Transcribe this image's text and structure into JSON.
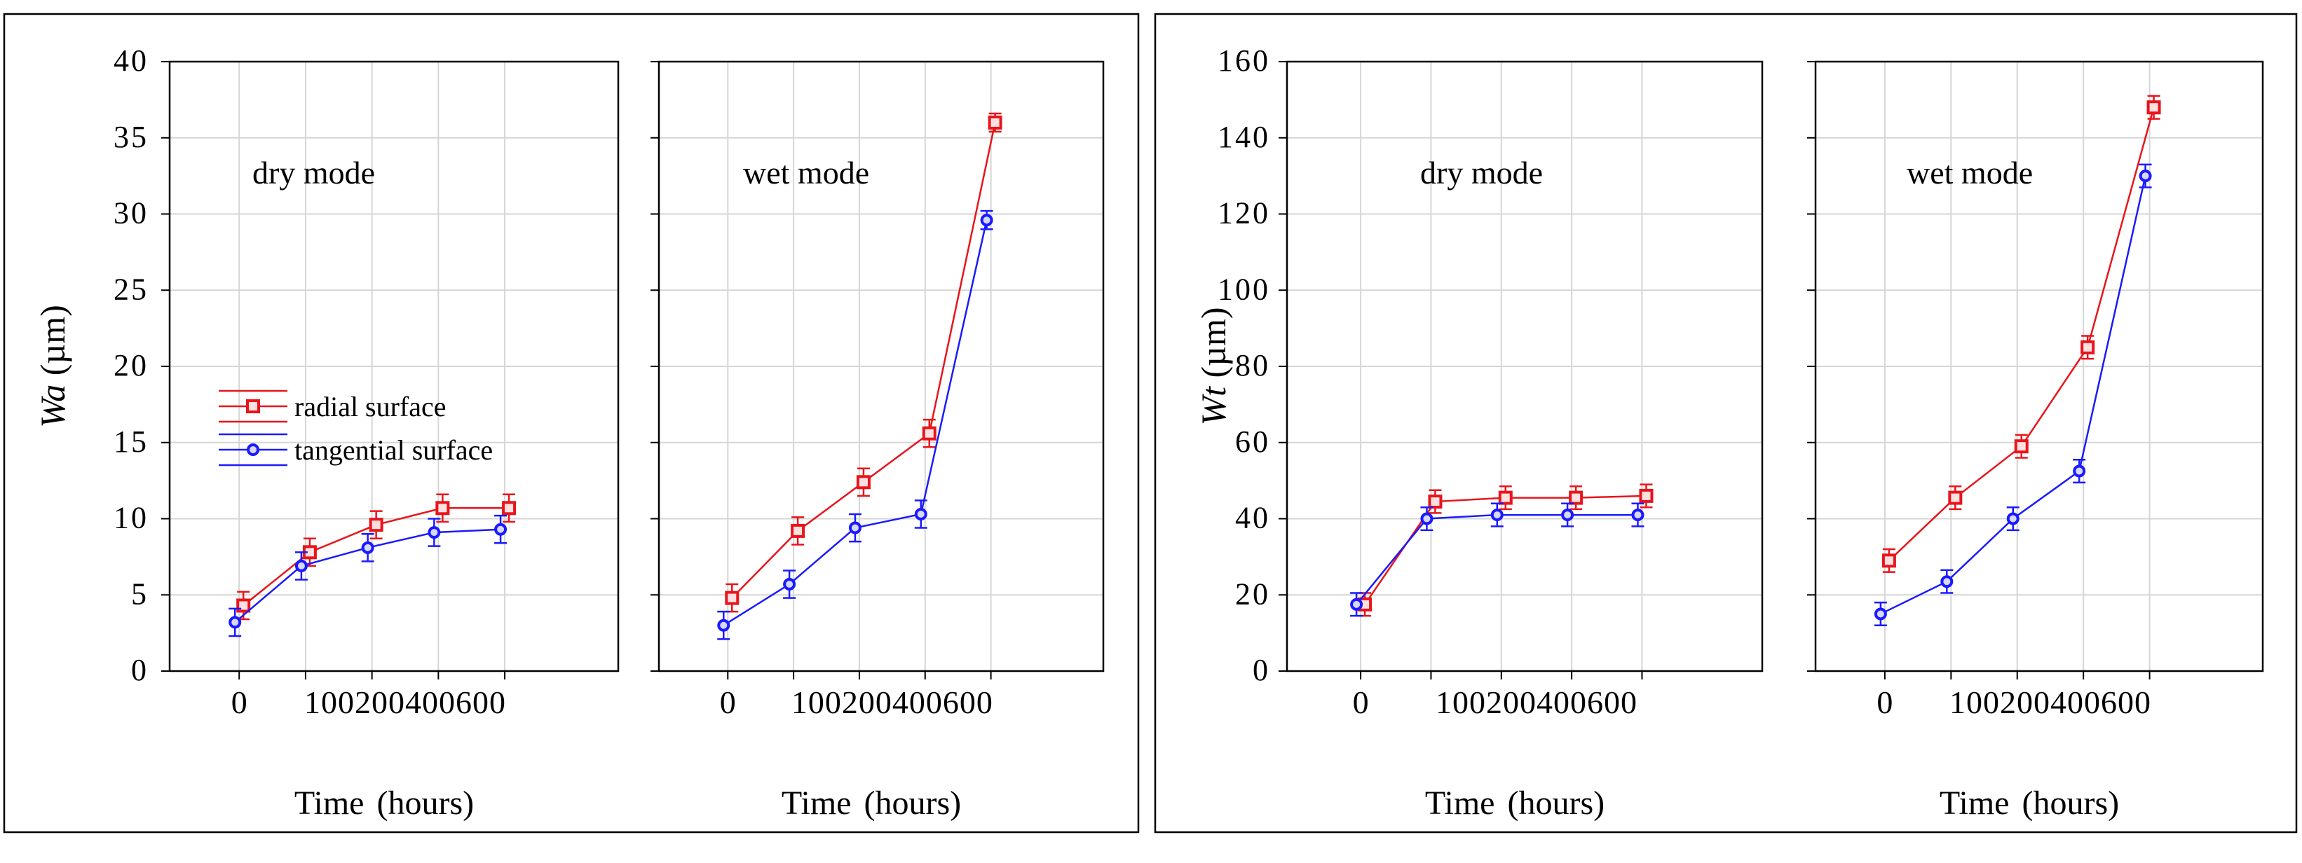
{
  "colors": {
    "radial": "#e8151b",
    "tangential": "#1a1aff",
    "grid": "#d6d6d6",
    "frame": "#000000"
  },
  "chart_data": [
    {
      "type": "line",
      "ylabel_sym": "Wa",
      "ylabel_unit": " (µm)",
      "ylim": [
        0,
        40
      ],
      "yticks": [
        "0",
        "5",
        "10",
        "15",
        "20",
        "25",
        "30",
        "35",
        "40"
      ],
      "xticks": [
        "0",
        "100",
        "200",
        "400",
        "600"
      ],
      "legend": {
        "placement": "left-middle of dry mode panel",
        "entries": [
          "radial surface",
          "tangential surface"
        ]
      },
      "panels": [
        {
          "title": "dry mode",
          "xlabel": "Time (hours)",
          "series": [
            {
              "name": "radial surface",
              "values": [
                4.3,
                7.8,
                9.6,
                10.7,
                10.7
              ],
              "errors": [
                0.9,
                0.9,
                0.9,
                0.9,
                0.9
              ]
            },
            {
              "name": "tangential surface",
              "values": [
                3.2,
                6.9,
                8.1,
                9.1,
                9.3
              ],
              "errors": [
                0.9,
                0.9,
                0.9,
                0.9,
                0.9
              ]
            }
          ]
        },
        {
          "title": "wet mode",
          "xlabel": "Time (hours)",
          "series": [
            {
              "name": "radial surface",
              "values": [
                4.8,
                9.2,
                12.4,
                15.6,
                36.0
              ],
              "errors": [
                0.9,
                0.9,
                0.9,
                0.9,
                0.6
              ]
            },
            {
              "name": "tangential surface",
              "values": [
                3.0,
                5.7,
                9.4,
                10.3,
                29.6
              ],
              "errors": [
                0.9,
                0.9,
                0.9,
                0.9,
                0.6
              ]
            }
          ]
        }
      ]
    },
    {
      "type": "line",
      "ylabel_sym": "Wt",
      "ylabel_unit": " (µm)",
      "ylim": [
        0,
        160
      ],
      "yticks": [
        "0",
        "20",
        "40",
        "60",
        "80",
        "100",
        "120",
        "140",
        "160"
      ],
      "xticks": [
        "0",
        "100",
        "200",
        "400",
        "600"
      ],
      "panels": [
        {
          "title": "dry mode",
          "xlabel": "Time (hours)",
          "series": [
            {
              "name": "radial surface",
              "values": [
                17.5,
                44.5,
                45.5,
                45.5,
                46.0
              ],
              "errors": [
                3.0,
                3.0,
                3.0,
                3.0,
                3.0
              ]
            },
            {
              "name": "tangential surface",
              "values": [
                17.5,
                40.0,
                41.0,
                41.0,
                41.0
              ],
              "errors": [
                3.0,
                3.0,
                3.0,
                3.0,
                3.0
              ]
            }
          ]
        },
        {
          "title": "wet mode",
          "xlabel": "Time (hours)",
          "series": [
            {
              "name": "radial surface",
              "values": [
                29.0,
                45.5,
                59.0,
                85.0,
                148.0
              ],
              "errors": [
                3.0,
                3.0,
                3.0,
                3.0,
                3.0
              ]
            },
            {
              "name": "tangential surface",
              "values": [
                15.0,
                23.5,
                40.0,
                52.5,
                130.0
              ],
              "errors": [
                3.0,
                3.0,
                3.0,
                3.0,
                3.0
              ]
            }
          ]
        }
      ]
    }
  ]
}
